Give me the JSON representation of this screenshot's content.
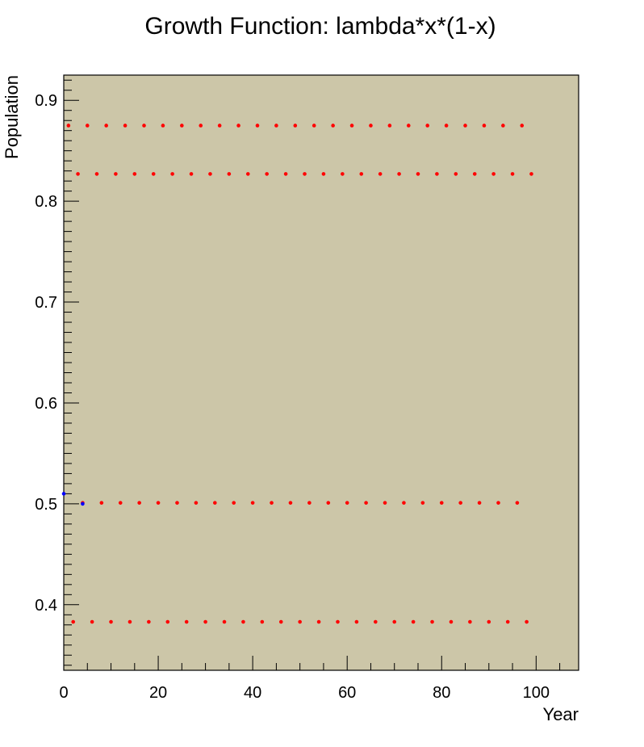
{
  "chart_data": {
    "type": "scatter",
    "title": "Growth Function: lambda*x*(1-x)",
    "xlabel": "Year",
    "ylabel": "Population",
    "xlim": [
      0,
      109
    ],
    "ylim": [
      0.335,
      0.925
    ],
    "x_ticks": [
      0,
      20,
      40,
      60,
      80,
      100
    ],
    "x_tick_labels": [
      "0",
      "20",
      "40",
      "60",
      "80",
      "100"
    ],
    "y_ticks": [
      0.4,
      0.5,
      0.6,
      0.7,
      0.8,
      0.9
    ],
    "y_tick_labels": [
      "0.4",
      "0.5",
      "0.6",
      "0.7",
      "0.8",
      "0.9"
    ],
    "grid": false,
    "background_color": "#ccc6a8",
    "series": [
      {
        "color": "#ff0000",
        "x": [
          1,
          5,
          9,
          13,
          17,
          21,
          25,
          29,
          33,
          37,
          41,
          45,
          49,
          53,
          57,
          61,
          65,
          69,
          73,
          77,
          81,
          85,
          89,
          93,
          97,
          3,
          7,
          11,
          15,
          19,
          23,
          27,
          31,
          35,
          39,
          43,
          47,
          51,
          55,
          59,
          63,
          67,
          71,
          75,
          79,
          83,
          87,
          91,
          95,
          99,
          4,
          8,
          12,
          16,
          20,
          24,
          28,
          32,
          36,
          40,
          44,
          48,
          52,
          56,
          60,
          64,
          68,
          72,
          76,
          80,
          84,
          88,
          92,
          96,
          2,
          6,
          10,
          14,
          18,
          22,
          26,
          30,
          34,
          38,
          42,
          46,
          50,
          54,
          58,
          62,
          66,
          70,
          74,
          78,
          82,
          86,
          90,
          94,
          98
        ],
        "y": [
          0.875,
          0.875,
          0.875,
          0.875,
          0.875,
          0.875,
          0.875,
          0.875,
          0.875,
          0.875,
          0.875,
          0.875,
          0.875,
          0.875,
          0.875,
          0.875,
          0.875,
          0.875,
          0.875,
          0.875,
          0.875,
          0.875,
          0.875,
          0.875,
          0.875,
          0.827,
          0.827,
          0.827,
          0.827,
          0.827,
          0.827,
          0.827,
          0.827,
          0.827,
          0.827,
          0.827,
          0.827,
          0.827,
          0.827,
          0.827,
          0.827,
          0.827,
          0.827,
          0.827,
          0.827,
          0.827,
          0.827,
          0.827,
          0.827,
          0.827,
          0.501,
          0.501,
          0.501,
          0.501,
          0.501,
          0.501,
          0.501,
          0.501,
          0.501,
          0.501,
          0.501,
          0.501,
          0.501,
          0.501,
          0.501,
          0.501,
          0.501,
          0.501,
          0.501,
          0.501,
          0.501,
          0.501,
          0.501,
          0.501,
          0.383,
          0.383,
          0.383,
          0.383,
          0.383,
          0.383,
          0.383,
          0.383,
          0.383,
          0.383,
          0.383,
          0.383,
          0.383,
          0.383,
          0.383,
          0.383,
          0.383,
          0.383,
          0.383,
          0.383,
          0.383,
          0.383,
          0.383,
          0.383,
          0.383
        ]
      },
      {
        "color": "#0000ff",
        "x": [
          0,
          4
        ],
        "y": [
          0.51,
          0.5
        ]
      }
    ]
  }
}
